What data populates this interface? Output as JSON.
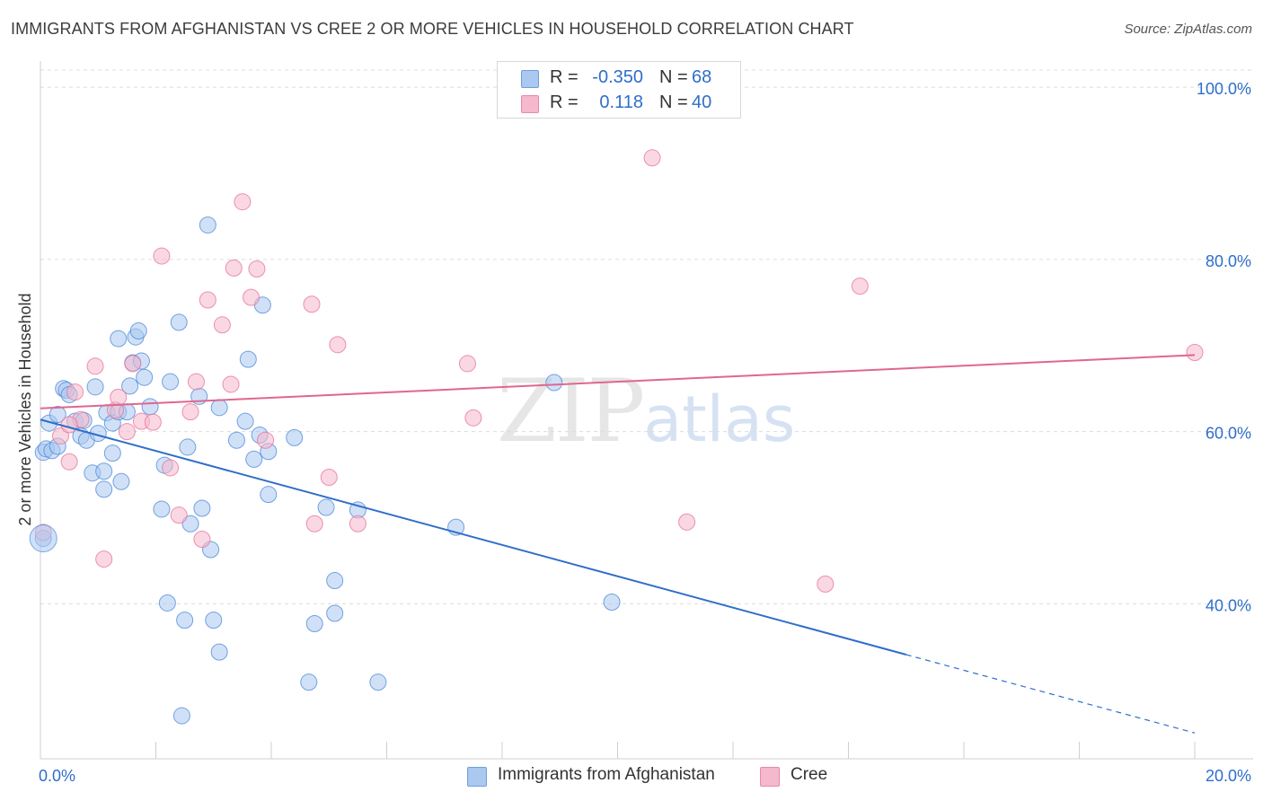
{
  "title": "IMMIGRANTS FROM AFGHANISTAN VS CREE 2 OR MORE VEHICLES IN HOUSEHOLD CORRELATION CHART",
  "source": "Source: ZipAtlas.com",
  "watermark": {
    "zip": "ZIP",
    "atlas": "atlas"
  },
  "legend": {
    "rows": [
      {
        "r_label": "R =",
        "r_value": "-0.350",
        "n_label": "N =",
        "n_value": "68",
        "color": "#aac8f0"
      },
      {
        "r_label": "R =",
        "r_value": "0.118",
        "n_label": "N =",
        "n_value": "40",
        "color": "#f5b8cc"
      }
    ]
  },
  "bottom_legend": [
    {
      "label": "Immigrants from Afghanistan",
      "color": "#aac8f0"
    },
    {
      "label": "Cree",
      "color": "#f5b8cc"
    }
  ],
  "chart_data": {
    "type": "scatter",
    "title": "IMMIGRANTS FROM AFGHANISTAN VS CREE 2 OR MORE VEHICLES IN HOUSEHOLD CORRELATION CHART",
    "xlabel": "",
    "ylabel": "2 or more Vehicles in Household",
    "xlim": [
      0,
      20
    ],
    "ylim": [
      22,
      102
    ],
    "x_tick_labels": [
      "0.0%",
      "20.0%"
    ],
    "y_ticks": [
      40,
      60,
      80,
      100
    ],
    "y_tick_labels": [
      "40.0%",
      "60.0%",
      "80.0%",
      "100.0%"
    ],
    "grid": true,
    "series": [
      {
        "name": "Immigrants from Afghanistan",
        "color": "#4a86d8",
        "fill": "#aac8f0",
        "points": [
          [
            0.05,
            57.6
          ],
          [
            0.1,
            58.0
          ],
          [
            0.15,
            61.0
          ],
          [
            0.2,
            57.8
          ],
          [
            0.3,
            62.0
          ],
          [
            0.3,
            58.3
          ],
          [
            0.4,
            65.0
          ],
          [
            0.45,
            64.8
          ],
          [
            0.5,
            64.3
          ],
          [
            0.6,
            61.2
          ],
          [
            0.7,
            59.5
          ],
          [
            0.75,
            61.3
          ],
          [
            0.8,
            59.0
          ],
          [
            0.9,
            55.2
          ],
          [
            0.95,
            65.2
          ],
          [
            1.0,
            59.8
          ],
          [
            1.1,
            55.4
          ],
          [
            1.15,
            62.2
          ],
          [
            1.25,
            61.0
          ],
          [
            1.25,
            57.5
          ],
          [
            1.35,
            62.3
          ],
          [
            1.4,
            54.2
          ],
          [
            1.35,
            70.8
          ],
          [
            1.5,
            62.3
          ],
          [
            1.55,
            65.3
          ],
          [
            1.6,
            68.0
          ],
          [
            1.65,
            71.0
          ],
          [
            1.7,
            71.7
          ],
          [
            1.75,
            68.2
          ],
          [
            1.8,
            66.3
          ],
          [
            1.9,
            62.9
          ],
          [
            2.1,
            51.0
          ],
          [
            2.15,
            56.1
          ],
          [
            2.2,
            40.1
          ],
          [
            2.25,
            65.8
          ],
          [
            2.4,
            72.7
          ],
          [
            2.5,
            38.1
          ],
          [
            2.55,
            58.2
          ],
          [
            2.6,
            49.3
          ],
          [
            2.75,
            64.1
          ],
          [
            2.8,
            51.1
          ],
          [
            2.9,
            84.0
          ],
          [
            2.95,
            46.3
          ],
          [
            3.0,
            38.1
          ],
          [
            3.1,
            34.4
          ],
          [
            3.1,
            62.8
          ],
          [
            3.4,
            59.0
          ],
          [
            3.55,
            61.2
          ],
          [
            3.6,
            68.4
          ],
          [
            3.7,
            56.8
          ],
          [
            3.8,
            59.6
          ],
          [
            3.85,
            74.7
          ],
          [
            3.95,
            52.7
          ],
          [
            3.95,
            57.7
          ],
          [
            4.4,
            59.3
          ],
          [
            4.75,
            37.7
          ],
          [
            4.65,
            30.9
          ],
          [
            4.95,
            51.2
          ],
          [
            5.1,
            42.7
          ],
          [
            5.1,
            38.9
          ],
          [
            5.5,
            50.9
          ],
          [
            5.85,
            30.9
          ],
          [
            7.2,
            48.9
          ],
          [
            8.9,
            65.7
          ],
          [
            9.9,
            40.2
          ],
          [
            2.45,
            27.0
          ],
          [
            0.05,
            47.6
          ],
          [
            1.1,
            53.3
          ]
        ]
      },
      {
        "name": "Cree",
        "color": "#e76f96",
        "fill": "#f5b8cc",
        "points": [
          [
            0.05,
            48.3
          ],
          [
            0.35,
            59.5
          ],
          [
            0.5,
            56.5
          ],
          [
            0.6,
            64.6
          ],
          [
            0.7,
            61.4
          ],
          [
            0.95,
            67.6
          ],
          [
            1.1,
            45.2
          ],
          [
            1.3,
            62.5
          ],
          [
            1.35,
            64.0
          ],
          [
            1.5,
            60.0
          ],
          [
            1.6,
            67.9
          ],
          [
            1.75,
            61.2
          ],
          [
            1.95,
            61.1
          ],
          [
            2.1,
            80.4
          ],
          [
            2.25,
            55.8
          ],
          [
            2.4,
            50.3
          ],
          [
            2.6,
            62.3
          ],
          [
            2.7,
            65.8
          ],
          [
            2.8,
            47.5
          ],
          [
            2.9,
            75.3
          ],
          [
            3.15,
            72.4
          ],
          [
            3.3,
            65.5
          ],
          [
            3.35,
            79.0
          ],
          [
            3.5,
            86.7
          ],
          [
            3.65,
            75.6
          ],
          [
            3.75,
            78.9
          ],
          [
            3.9,
            59.0
          ],
          [
            4.7,
            74.8
          ],
          [
            4.75,
            49.3
          ],
          [
            5.0,
            54.7
          ],
          [
            5.15,
            70.1
          ],
          [
            5.5,
            49.3
          ],
          [
            7.4,
            67.9
          ],
          [
            7.5,
            61.6
          ],
          [
            10.6,
            91.8
          ],
          [
            11.2,
            49.5
          ],
          [
            13.6,
            42.3
          ],
          [
            14.2,
            76.9
          ],
          [
            20.0,
            69.2
          ],
          [
            0.5,
            60.8
          ]
        ]
      }
    ],
    "trendlines": [
      {
        "series": "Immigrants from Afghanistan",
        "x_start": 0,
        "y_start": 61.4,
        "x_solid_end": 15.0,
        "x_end": 20.0,
        "y_end": 25.0,
        "color": "#2f6ec9"
      },
      {
        "series": "Cree",
        "x_start": 0,
        "y_start": 62.7,
        "x_end": 20.0,
        "y_end": 68.9,
        "color": "#e06690"
      }
    ]
  }
}
